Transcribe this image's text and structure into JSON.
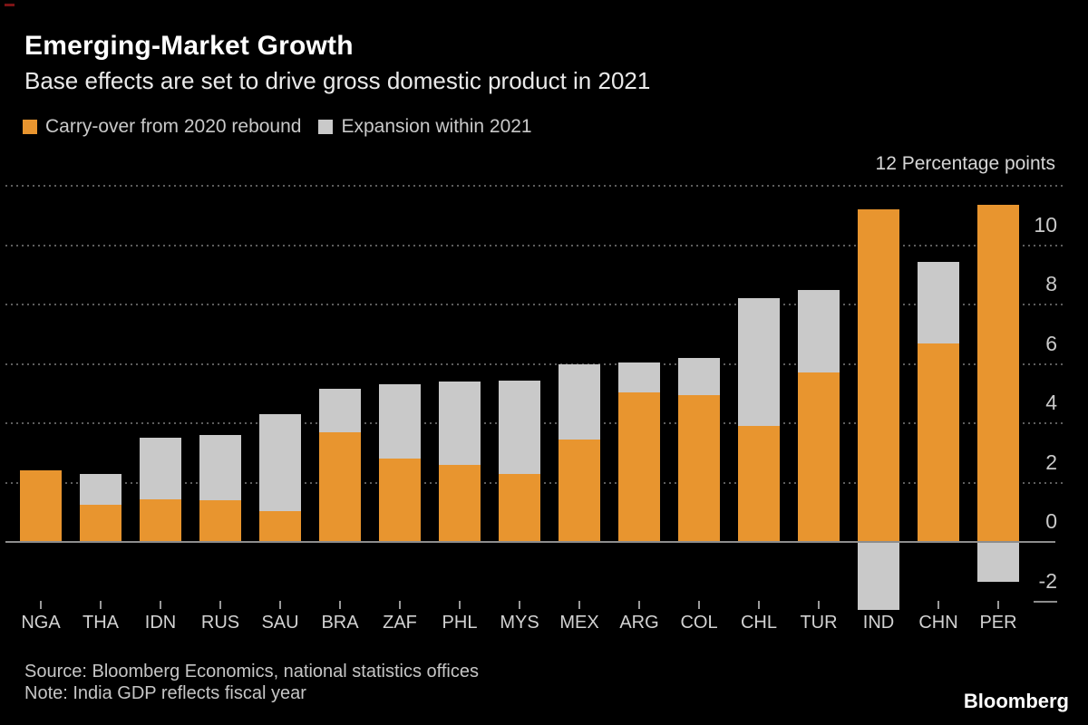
{
  "header": {
    "title": "Emerging-Market Growth",
    "subtitle": "Base effects are set to drive gross domestic product in 2021"
  },
  "legend": [
    {
      "label": "Carry-over from 2020 rebound",
      "color": "#E8952F"
    },
    {
      "label": "Expansion within 2021",
      "color": "#C9C9C9"
    }
  ],
  "chart_data": {
    "type": "bar",
    "stacked": true,
    "axis_header": "12  Percentage points",
    "ylabel": "Percentage points",
    "categories": [
      "NGA",
      "THA",
      "IDN",
      "RUS",
      "SAU",
      "BRA",
      "ZAF",
      "PHL",
      "MYS",
      "MEX",
      "ARG",
      "COL",
      "CHL",
      "TUR",
      "IND",
      "CHN",
      "PER"
    ],
    "series": [
      {
        "name": "Carry-over from 2020 rebound",
        "color": "#E8952F",
        "values": [
          2.4,
          1.25,
          1.45,
          1.4,
          1.05,
          3.7,
          2.8,
          2.6,
          2.3,
          3.45,
          5.05,
          4.95,
          3.9,
          5.7,
          11.2,
          6.7,
          11.35
        ]
      },
      {
        "name": "Expansion within 2021",
        "color": "#C9C9C9",
        "values": [
          0,
          1.05,
          2.05,
          2.2,
          3.25,
          1.45,
          2.5,
          2.8,
          3.15,
          2.55,
          1.0,
          1.25,
          4.3,
          2.8,
          -2.3,
          2.75,
          -1.35
        ]
      }
    ],
    "ylim": [
      -2.8,
      12.8
    ],
    "grid_values_dotted": [
      12,
      10,
      8,
      6,
      4,
      2
    ],
    "zero_line": 0,
    "right_tick_labels": [
      10,
      8,
      6,
      4,
      2,
      0,
      -2
    ],
    "legend_position": "top-left",
    "grid": "horizontal-dotted"
  },
  "footer": {
    "source": "Source: Bloomberg Economics, national statistics offices",
    "note": "Note: India GDP reflects fiscal year",
    "logo": "Bloomberg"
  },
  "colors": {
    "background": "#000000",
    "carry_over": "#E8952F",
    "expansion": "#C9C9C9",
    "axis": "#8D8D8D",
    "grid_dots": "#5D5D5D",
    "text": "#C9C9C9"
  }
}
